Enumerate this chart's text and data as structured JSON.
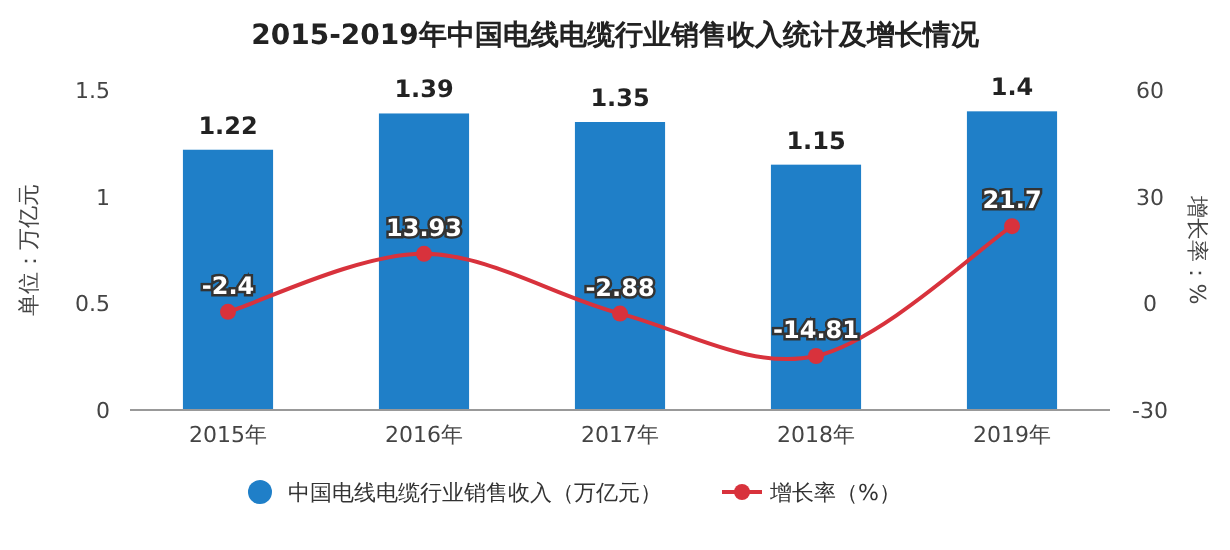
{
  "chart_data": {
    "type": "bar",
    "title": "2015-2019年中国电线电缆行业销售收入统计及增长情况",
    "ylabel": "单位：万亿元",
    "y2label": "增长率：%",
    "categories": [
      "2015年",
      "2016年",
      "2017年",
      "2018年",
      "2019年"
    ],
    "series": [
      {
        "name": "中国电线电缆行业销售收入（万亿元）",
        "color": "#1f7fc8",
        "values": [
          1.22,
          1.39,
          1.35,
          1.15,
          1.4
        ]
      },
      {
        "name": "增长率（%）",
        "type": "line",
        "axis": "y2",
        "color": "#d8323c",
        "values": [
          -2.4,
          13.93,
          -2.88,
          -14.81,
          21.7
        ],
        "marker": "circle",
        "line_style": "solid"
      }
    ],
    "ylim": [
      0,
      1.5
    ],
    "yticks": [
      0,
      0.5,
      1,
      1.5
    ],
    "y2lim": [
      -30,
      60
    ],
    "y2ticks": [
      -30,
      0,
      30,
      60
    ],
    "data_labels": true,
    "legend": "bottom",
    "grid": false
  }
}
